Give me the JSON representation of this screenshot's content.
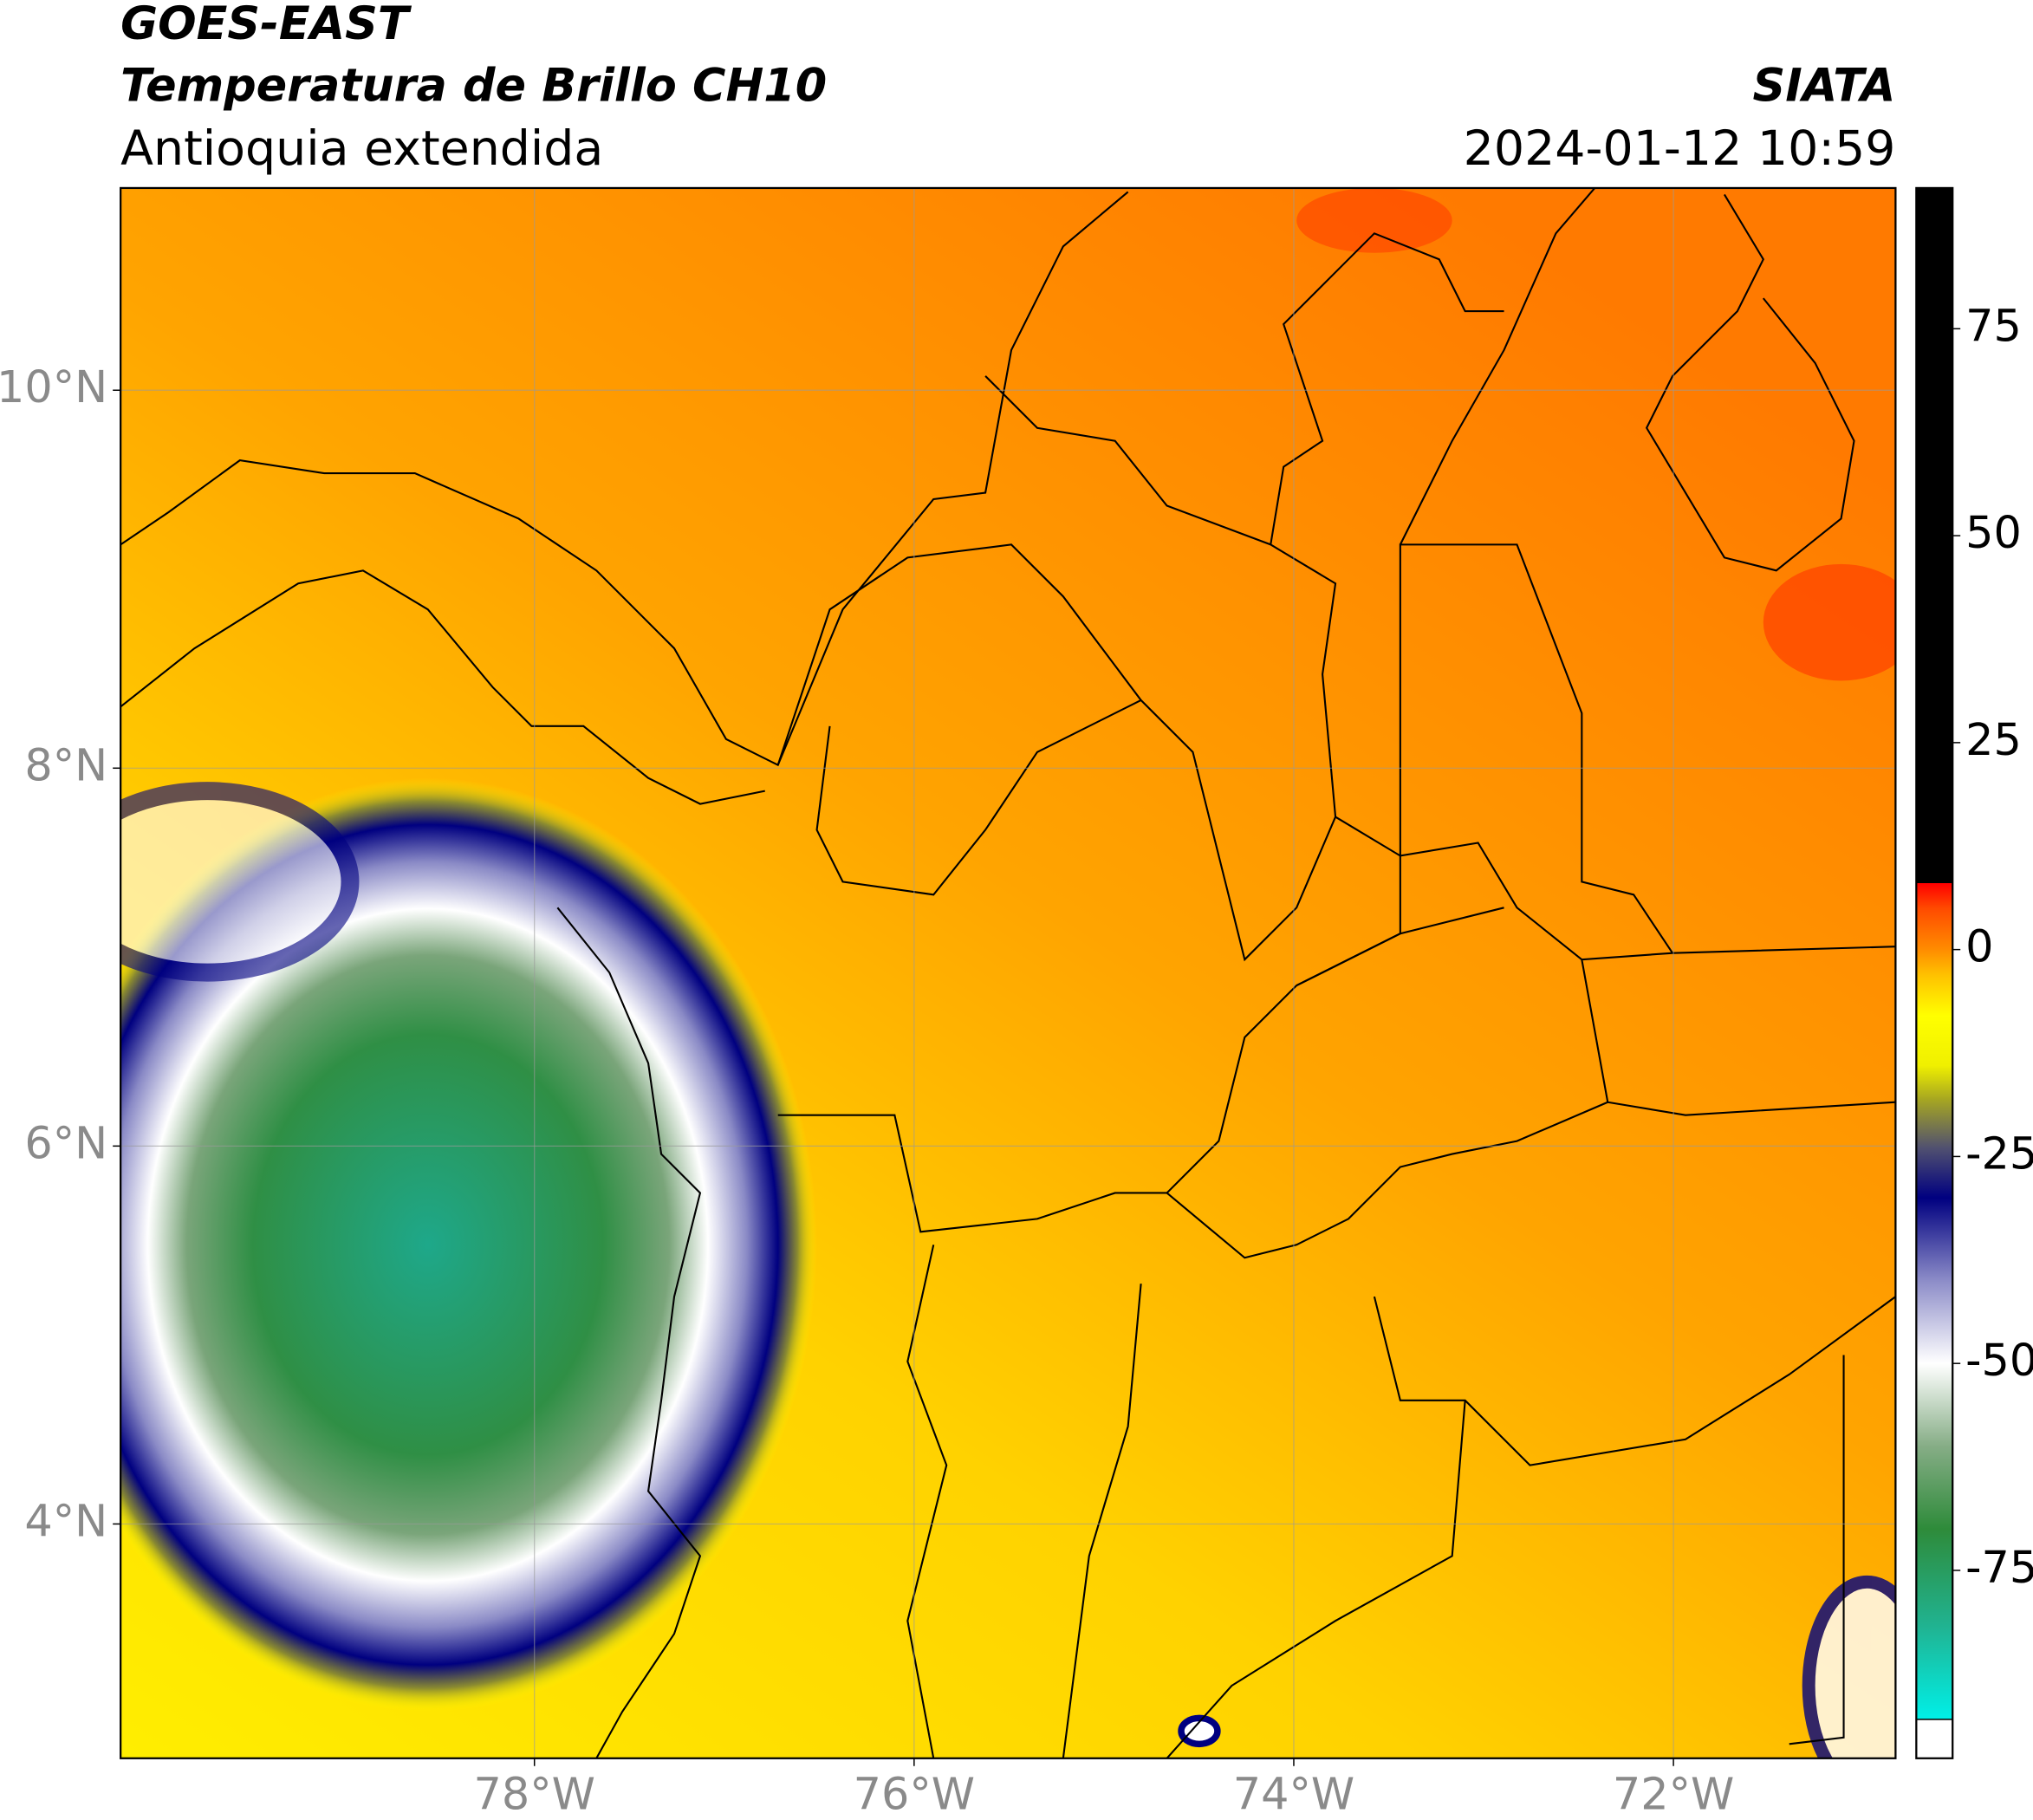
{
  "header": {
    "satellite": "GOES-EAST",
    "product": "Temperatura de Brillo CH10",
    "region": "Antioquia extendida",
    "source": "SIATA",
    "datetime": "2024-01-12 10:59"
  },
  "map": {
    "lon_range": [
      -80.18,
      -70.83
    ],
    "lat_range": [
      2.76,
      11.07
    ],
    "lon_ticks": [
      {
        "value": -78,
        "label": "78°W"
      },
      {
        "value": -76,
        "label": "76°W"
      },
      {
        "value": -74,
        "label": "74°W"
      },
      {
        "value": -72,
        "label": "72°W"
      }
    ],
    "lat_ticks": [
      {
        "value": 10,
        "label": "10°N"
      },
      {
        "value": 8,
        "label": "8°N"
      },
      {
        "value": 6,
        "label": "6°N"
      },
      {
        "value": 4,
        "label": "4°N"
      }
    ],
    "grid": true
  },
  "colorbar": {
    "range": [
      -93,
      92
    ],
    "ticks": [
      75,
      50,
      25,
      0,
      -25,
      -50,
      -75
    ],
    "under_color": "#ffffff",
    "stops": [
      {
        "value": -93,
        "color": "#00f0e8"
      },
      {
        "value": -82,
        "color": "#20b493"
      },
      {
        "value": -70,
        "color": "#2e8b3a"
      },
      {
        "value": -60,
        "color": "#86ad86"
      },
      {
        "value": -50,
        "color": "#ffffff"
      },
      {
        "value": -40,
        "color": "#8c8cc8"
      },
      {
        "value": -30,
        "color": "#000080"
      },
      {
        "value": -24,
        "color": "#505070"
      },
      {
        "value": -18,
        "color": "#a8a820"
      },
      {
        "value": -14,
        "color": "#f0f000"
      },
      {
        "value": -8,
        "color": "#ffff00"
      },
      {
        "value": -3,
        "color": "#ffc000"
      },
      {
        "value": 0,
        "color": "#ff8c00"
      },
      {
        "value": 5,
        "color": "#ff4a00"
      },
      {
        "value": 8,
        "color": "#ff0000"
      },
      {
        "value": 8,
        "color": "#000000"
      },
      {
        "value": 92,
        "color": "#000000"
      }
    ]
  }
}
